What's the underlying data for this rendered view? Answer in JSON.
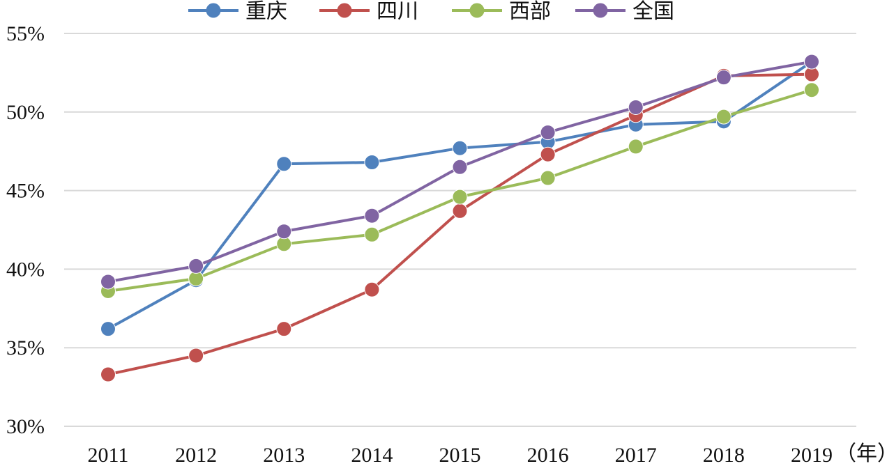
{
  "chart_data": {
    "type": "line",
    "title": "",
    "xlabel": "",
    "ylabel": "",
    "x_unit": "（年）",
    "categories": [
      "2011",
      "2012",
      "2013",
      "2014",
      "2015",
      "2016",
      "2017",
      "2018",
      "2019"
    ],
    "ylim": [
      30,
      55
    ],
    "yticks": [
      30,
      35,
      40,
      45,
      50,
      55
    ],
    "ytick_labels": [
      "30%",
      "35%",
      "40%",
      "45%",
      "50%",
      "55%"
    ],
    "grid": true,
    "legend_position": "top",
    "series": [
      {
        "name": "重庆",
        "color": "#4F81BD",
        "values": [
          36.2,
          39.3,
          46.7,
          46.8,
          47.7,
          48.1,
          49.2,
          49.4,
          53.2
        ]
      },
      {
        "name": "四川",
        "color": "#C0504D",
        "values": [
          33.3,
          34.5,
          36.2,
          38.7,
          43.7,
          47.3,
          49.8,
          52.3,
          52.4
        ]
      },
      {
        "name": "西部",
        "color": "#9BBB59",
        "values": [
          38.6,
          39.4,
          41.6,
          42.2,
          44.6,
          45.8,
          47.8,
          49.7,
          51.4
        ]
      },
      {
        "name": "全国",
        "color": "#8064A2",
        "values": [
          39.2,
          40.2,
          42.4,
          43.4,
          46.5,
          48.7,
          50.3,
          52.2,
          53.2
        ]
      }
    ]
  }
}
